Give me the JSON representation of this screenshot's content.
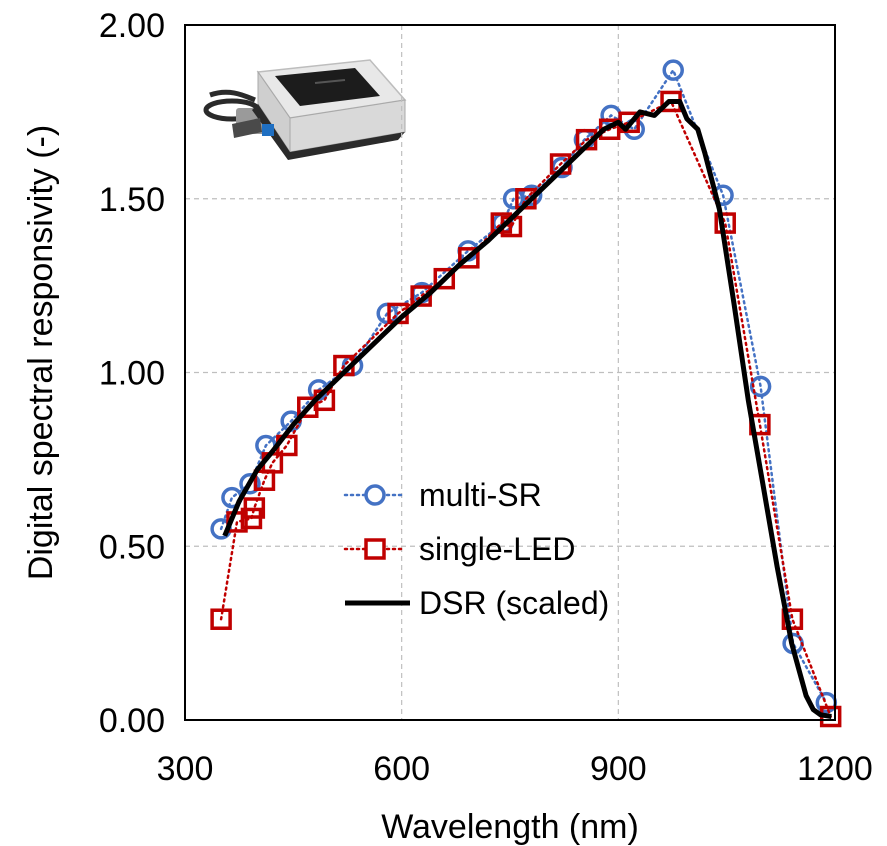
{
  "chart_data": {
    "type": "line",
    "xlabel": "Wavelength (nm)",
    "ylabel": "Digital spectral responsivity (-)",
    "xlim": [
      300,
      1200
    ],
    "ylim": [
      0,
      2.0
    ],
    "x_ticks": [
      "300",
      "600",
      "900",
      "1200"
    ],
    "y_ticks": [
      "0.00",
      "0.50",
      "1.00",
      "1.50",
      "2.00"
    ],
    "grid": true,
    "legend_position": "center",
    "inset": "photo of a device with a grey housing, dark top face and mounting bracket",
    "series": [
      {
        "name": "multi-SR",
        "color": "#4472c4",
        "marker": "circle",
        "line_style": "dotted",
        "x": [
          350,
          365,
          390,
          412,
          447,
          485,
          532,
          580,
          628,
          692,
          740,
          755,
          780,
          822,
          853,
          890,
          922,
          976,
          1045,
          1097,
          1142,
          1188
        ],
        "y": [
          0.55,
          0.64,
          0.68,
          0.79,
          0.86,
          0.95,
          1.02,
          1.17,
          1.23,
          1.35,
          1.43,
          1.5,
          1.51,
          1.59,
          1.67,
          1.74,
          1.7,
          1.87,
          1.51,
          0.96,
          0.22,
          0.05
        ]
      },
      {
        "name": "single-LED",
        "color": "#c00000",
        "marker": "square",
        "line_style": "dotted",
        "x": [
          350,
          372,
          392,
          396,
          410,
          421,
          441,
          470,
          493,
          520,
          595,
          627,
          659,
          693,
          738,
          752,
          772,
          820,
          856,
          888,
          915,
          973,
          1048,
          1096,
          1141,
          1194
        ],
        "y": [
          0.29,
          0.57,
          0.58,
          0.61,
          0.69,
          0.74,
          0.79,
          0.9,
          0.92,
          1.02,
          1.17,
          1.22,
          1.27,
          1.33,
          1.43,
          1.42,
          1.5,
          1.6,
          1.67,
          1.7,
          1.72,
          1.78,
          1.43,
          0.85,
          0.29,
          0.01
        ]
      },
      {
        "name": "DSR (scaled)",
        "color": "#000000",
        "marker": "none",
        "line_style": "solid",
        "x": [
          355,
          375,
          400,
          420,
          450,
          480,
          520,
          560,
          600,
          640,
          680,
          720,
          760,
          790,
          820,
          850,
          880,
          900,
          910,
          930,
          950,
          970,
          985,
          995,
          1010,
          1020,
          1040,
          1060,
          1080,
          1100,
          1120,
          1140,
          1160,
          1170,
          1180,
          1195
        ],
        "y": [
          0.53,
          0.63,
          0.72,
          0.77,
          0.85,
          0.92,
          1.0,
          1.08,
          1.16,
          1.23,
          1.31,
          1.38,
          1.46,
          1.52,
          1.58,
          1.64,
          1.7,
          1.72,
          1.7,
          1.75,
          1.74,
          1.78,
          1.78,
          1.73,
          1.7,
          1.63,
          1.47,
          1.2,
          0.92,
          0.68,
          0.44,
          0.22,
          0.07,
          0.03,
          0.015,
          0.01
        ]
      }
    ]
  }
}
